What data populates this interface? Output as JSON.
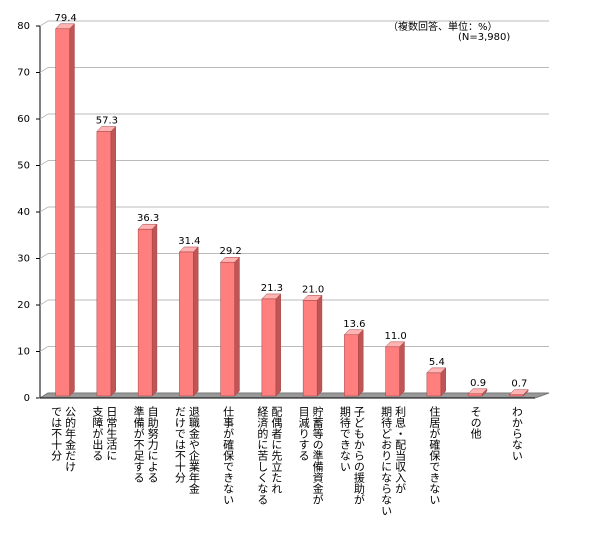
{
  "chart_data": {
    "type": "bar3d",
    "annotations": [
      "（複数回答、単位：%）",
      "(N=3,980)"
    ],
    "categories": [
      "公的年金だけ\nでは不十分",
      "日常生活に\n支障が出る",
      "自助努力による\n準備が不足する",
      "退職金や企業年金\nだけでは不十分",
      "仕事が確保できない",
      "配偶者に先立たれ\n経済的に苦しくなる",
      "貯蓄等の準備資金が\n目減りする",
      "子どもからの援助が\n期待できない",
      "利息・配当収入が\n期待どおりにならない",
      "住居が確保できない",
      "その他",
      "わからない"
    ],
    "values": [
      79.4,
      57.3,
      36.3,
      31.4,
      29.2,
      21.3,
      21.0,
      13.6,
      11.0,
      5.4,
      0.9,
      0.7
    ],
    "value_labels": [
      "79.4",
      "57.3",
      "36.3",
      "31.4",
      "29.2",
      "21.3",
      "21.0",
      "13.6",
      "11.0",
      "5.4",
      "0.9",
      "0.7"
    ],
    "color": "#ff7f7f",
    "ylim": [
      0,
      80
    ],
    "yticks": [
      0,
      10,
      20,
      30,
      40,
      50,
      60,
      70,
      80
    ],
    "grid": true
  }
}
